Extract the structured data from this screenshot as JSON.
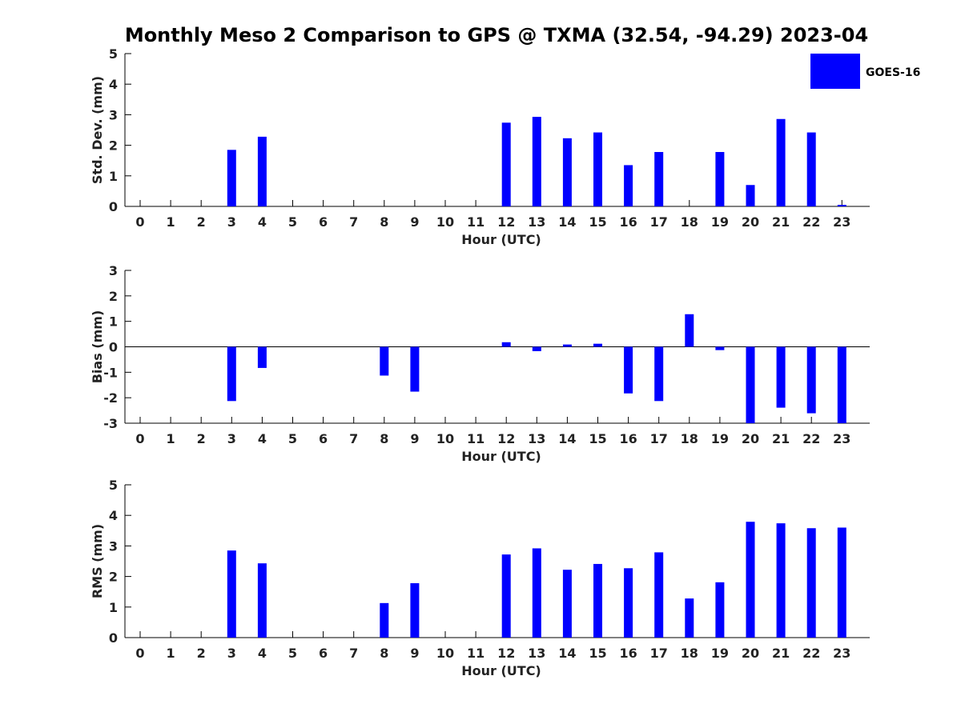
{
  "title": "Monthly Meso 2 Comparison to GPS @ TXMA (32.54, -94.29) 2023-04",
  "colors": {
    "bar": "#0000ff",
    "axis": "#000000",
    "background": "#ffffff"
  },
  "legend": {
    "label": "GOES-16",
    "placement": "top-right"
  },
  "chart_data": [
    {
      "type": "bar",
      "ylabel": "Std. Dev. (mm)",
      "xlabel": "Hour (UTC)",
      "ylim": [
        0,
        5
      ],
      "yticks": [
        0,
        1,
        2,
        3,
        4,
        5
      ],
      "categories": [
        "0",
        "1",
        "2",
        "3",
        "4",
        "5",
        "6",
        "7",
        "8",
        "9",
        "10",
        "11",
        "12",
        "13",
        "14",
        "15",
        "16",
        "17",
        "18",
        "19",
        "20",
        "21",
        "22",
        "23"
      ],
      "series": [
        {
          "name": "GOES-16",
          "values": [
            null,
            null,
            null,
            1.85,
            2.28,
            null,
            null,
            null,
            null,
            null,
            null,
            null,
            2.74,
            2.93,
            2.23,
            2.42,
            1.35,
            1.78,
            null,
            1.78,
            0.7,
            2.86,
            2.42,
            0.05
          ]
        }
      ]
    },
    {
      "type": "bar",
      "ylabel": "Bias (mm)",
      "xlabel": "Hour (UTC)",
      "ylim": [
        -3,
        3
      ],
      "yticks": [
        -3,
        -2,
        -1,
        0,
        1,
        2,
        3
      ],
      "categories": [
        "0",
        "1",
        "2",
        "3",
        "4",
        "5",
        "6",
        "7",
        "8",
        "9",
        "10",
        "11",
        "12",
        "13",
        "14",
        "15",
        "16",
        "17",
        "18",
        "19",
        "20",
        "21",
        "22",
        "23"
      ],
      "series": [
        {
          "name": "GOES-16",
          "values": [
            null,
            null,
            null,
            -2.13,
            -0.83,
            null,
            null,
            null,
            -1.13,
            -1.76,
            null,
            null,
            0.18,
            -0.17,
            0.09,
            0.12,
            -1.83,
            -2.13,
            1.28,
            -0.13,
            -3.0,
            -2.39,
            -2.61,
            -3.0
          ]
        }
      ]
    },
    {
      "type": "bar",
      "ylabel": "RMS (mm)",
      "xlabel": "Hour (UTC)",
      "ylim": [
        0,
        5
      ],
      "yticks": [
        0,
        1,
        2,
        3,
        4,
        5
      ],
      "categories": [
        "0",
        "1",
        "2",
        "3",
        "4",
        "5",
        "6",
        "7",
        "8",
        "9",
        "10",
        "11",
        "12",
        "13",
        "14",
        "15",
        "16",
        "17",
        "18",
        "19",
        "20",
        "21",
        "22",
        "23"
      ],
      "series": [
        {
          "name": "GOES-16",
          "values": [
            null,
            null,
            null,
            2.85,
            2.43,
            null,
            null,
            null,
            1.13,
            1.78,
            null,
            null,
            2.72,
            2.92,
            2.22,
            2.41,
            2.27,
            2.79,
            1.28,
            1.81,
            3.79,
            3.74,
            3.58,
            3.6
          ]
        }
      ]
    }
  ]
}
